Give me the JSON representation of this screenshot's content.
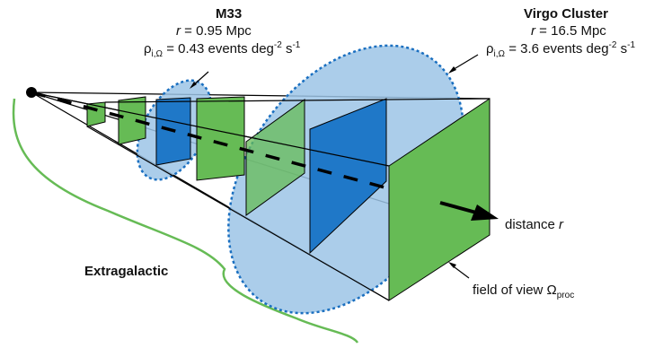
{
  "m33": {
    "name": "M33",
    "r_symbol": "r",
    "r_value": "= 0.95 Mpc",
    "rho_symbol": "ρ",
    "rho_sub": "i,Ω",
    "rho_value": "= 0.43 events deg",
    "rho_exp1": "-2",
    "rho_mid": "s",
    "rho_exp2": "-1"
  },
  "virgo": {
    "name": "Virgo Cluster",
    "r_symbol": "r",
    "r_value": "= 16.5 Mpc",
    "rho_symbol": "ρ",
    "rho_sub": "i,Ω",
    "rho_value": "= 3.6 events deg",
    "rho_exp1": "-2",
    "rho_mid": "s",
    "rho_exp2": "-1"
  },
  "distance_label": {
    "text": "distance",
    "symbol": "r"
  },
  "fov_label": {
    "text": "field of view Ω",
    "sub": "proc"
  },
  "extragalactic_label": "Extragalactic",
  "colors": {
    "green_panel": "#66bb55",
    "blue_panel": "#1f78c8",
    "ellipse_fill": "#9cc4e6",
    "ellipse_border": "#1a6fc0",
    "brace": "#66bb55",
    "line": "#000000"
  }
}
